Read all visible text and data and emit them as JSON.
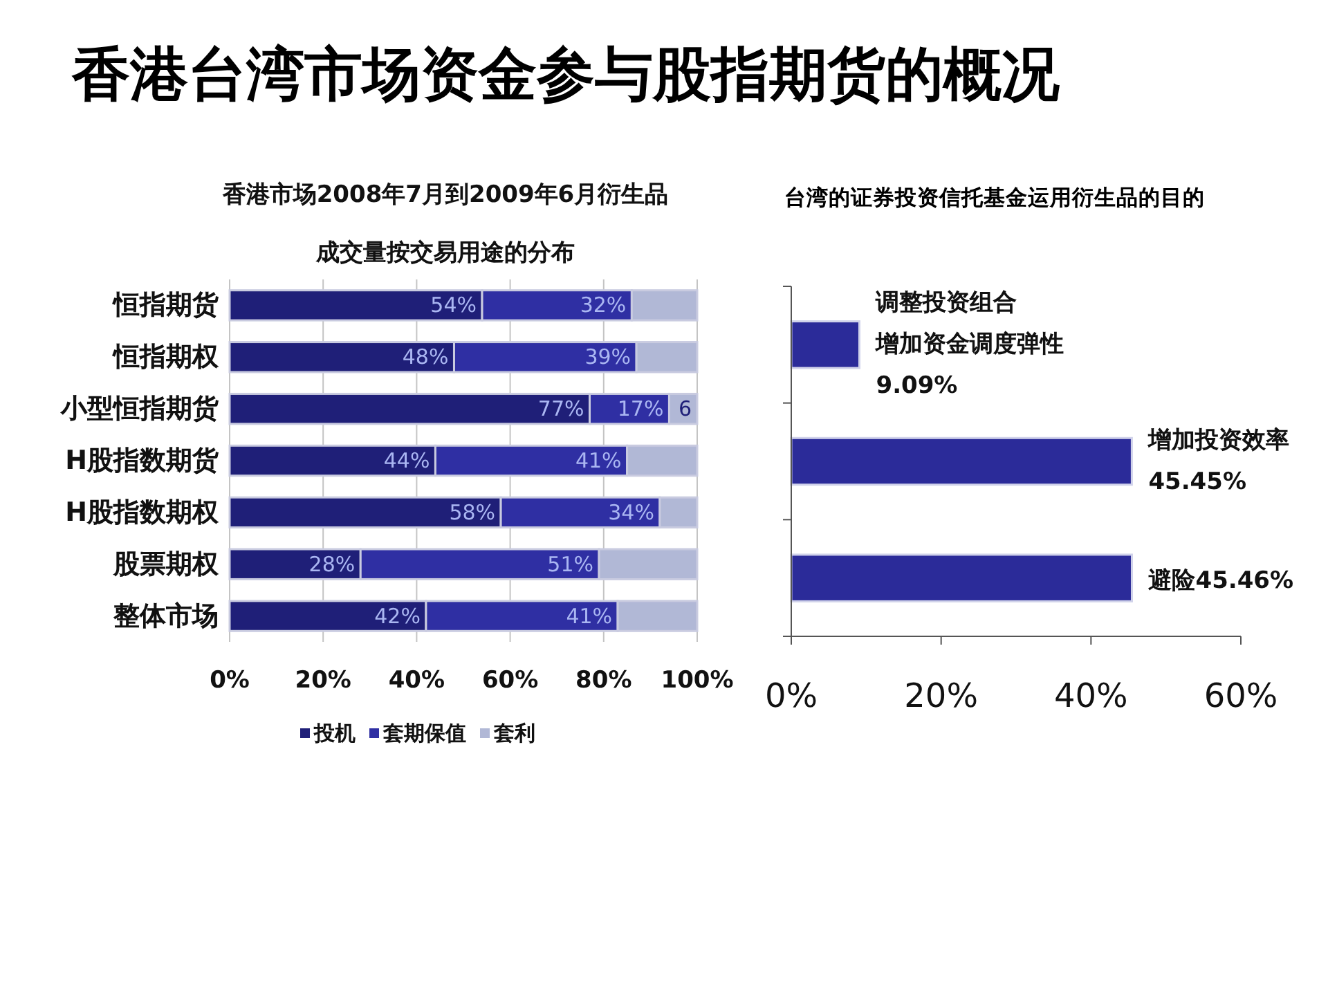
{
  "chart_data": [
    {
      "type": "bar",
      "orientation": "horizontal",
      "stacked": true,
      "title": "香港台湾市场资金参与股指期货的概况",
      "subtitle": "香港市场2008年7月到2009年6月衍生品成交量按交易用途的分布",
      "categories": [
        "恒指期货",
        "恒指期权",
        "小型恒指期货",
        "H股指数期货",
        "H股指数期权",
        "股票期权",
        "整体市场"
      ],
      "series": [
        {
          "name": "投机",
          "color": "#1f1f78",
          "values": [
            54,
            48,
            77,
            44,
            58,
            28,
            42
          ],
          "value_labels": [
            "54%",
            "48%",
            "77%",
            "44%",
            "58%",
            "28%",
            "42%"
          ]
        },
        {
          "name": "套期保值",
          "color": "#2f2fa3",
          "values": [
            32,
            39,
            17,
            41,
            34,
            51,
            41
          ],
          "value_labels": [
            "32%",
            "39%",
            "17%",
            "41%",
            "34%",
            "51%",
            "41%"
          ]
        },
        {
          "name": "套利",
          "color": "#b1b8d6",
          "values": [
            14,
            13,
            6,
            15,
            8,
            21,
            17
          ],
          "value_labels": [
            null,
            null,
            "6",
            null,
            null,
            null,
            null
          ]
        }
      ],
      "xlim": [
        0,
        100
      ],
      "xticks": [
        {
          "value": 0,
          "label": "0%"
        },
        {
          "value": 20,
          "label": "20%"
        },
        {
          "value": 40,
          "label": "40%"
        },
        {
          "value": 60,
          "label": "60%"
        },
        {
          "value": 80,
          "label": "80%"
        },
        {
          "value": 100,
          "label": "100%"
        }
      ],
      "grid": "x",
      "legend": "bottom"
    },
    {
      "type": "bar",
      "orientation": "horizontal",
      "title": "台湾的证券投资信托基金运用衍生品的目的",
      "categories": [
        "调整投资组合增加资金调度弹性",
        "增加投资效率",
        "避险"
      ],
      "values": [
        9.09,
        45.45,
        45.46
      ],
      "color": "#2b2b99",
      "value_labels": [
        "9.09%",
        "45.45%",
        "45.46%"
      ],
      "xlim": [
        0,
        60
      ],
      "xticks": [
        {
          "value": 0,
          "label": "0%"
        },
        {
          "value": 20,
          "label": "20%"
        },
        {
          "value": 40,
          "label": "40%"
        },
        {
          "value": 60,
          "label": "60%"
        }
      ]
    }
  ]
}
